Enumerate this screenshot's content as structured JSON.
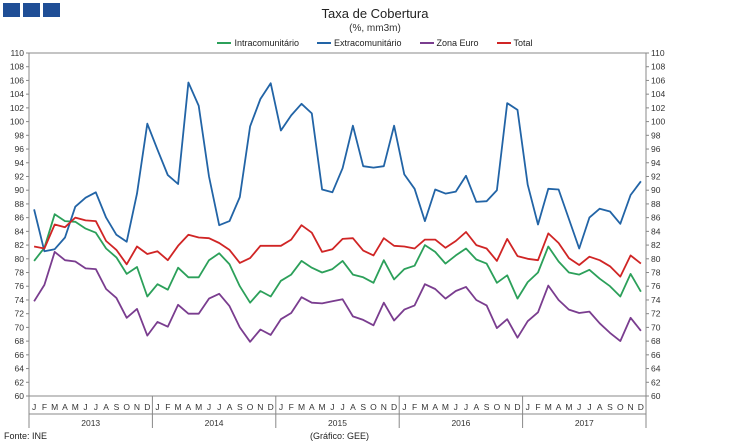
{
  "header": {
    "title": "Taxa de Cobertura",
    "subtitle": "(%, mm3m)"
  },
  "footer": {
    "source": "Fonte: INE",
    "credit": "(Gráfico: GEE)"
  },
  "chart_data": {
    "type": "line",
    "title": "Taxa de Cobertura",
    "subtitle": "(%, mm3m)",
    "ylim": [
      60,
      110
    ],
    "ytick_step": 2,
    "legend_position": "top",
    "month_labels": [
      "J",
      "F",
      "M",
      "A",
      "M",
      "J",
      "J",
      "A",
      "S",
      "O",
      "N",
      "D"
    ],
    "years": [
      "2013",
      "2014",
      "2015",
      "2016",
      "2017"
    ],
    "series": [
      {
        "name": "Intracomunitário",
        "color": "#2ca05a",
        "values": [
          79.7,
          81.6,
          86.5,
          85.5,
          85.4,
          84.4,
          83.8,
          81.5,
          80.2,
          77.8,
          78.8,
          74.5,
          76.3,
          75.5,
          78.7,
          77.3,
          77.3,
          79.8,
          80.8,
          79.2,
          76.0,
          73.6,
          75.3,
          74.5,
          76.8,
          77.7,
          79.7,
          78.7,
          78.0,
          78.5,
          79.7,
          77.7,
          77.3,
          76.5,
          79.8,
          77.0,
          78.5,
          79.0,
          82.0,
          81.0,
          79.3,
          80.5,
          81.5,
          79.9,
          79.3,
          76.5,
          77.6,
          74.2,
          76.6,
          78.0,
          81.8,
          79.6,
          78.0,
          77.7,
          78.4,
          77.1,
          76.0,
          74.5,
          77.8,
          75.2
        ]
      },
      {
        "name": "Extracomunitário",
        "color": "#2264a6",
        "values": [
          87.2,
          81.1,
          81.4,
          83.1,
          87.6,
          88.9,
          89.7,
          86.0,
          83.5,
          82.5,
          89.5,
          99.7,
          95.9,
          92.2,
          90.9,
          105.7,
          102.3,
          92.0,
          84.9,
          85.5,
          89.0,
          99.3,
          103.3,
          105.6,
          98.7,
          100.9,
          102.6,
          101.2,
          90.1,
          89.7,
          93.2,
          99.4,
          93.5,
          93.3,
          93.5,
          99.4,
          92.3,
          90.2,
          85.5,
          90.1,
          89.5,
          89.8,
          92.1,
          88.3,
          88.4,
          90.0,
          102.7,
          101.7,
          90.8,
          85.0,
          90.2,
          90.1,
          85.8,
          81.5,
          86.0,
          87.3,
          86.9,
          85.1,
          89.3,
          91.3
        ]
      },
      {
        "name": "Zona Euro",
        "color": "#7a3d8f",
        "values": [
          73.8,
          76.2,
          81.0,
          79.8,
          79.6,
          78.6,
          78.5,
          75.6,
          74.3,
          71.4,
          72.7,
          68.8,
          70.8,
          70.1,
          73.3,
          72.0,
          72.0,
          74.2,
          74.9,
          73.1,
          70.0,
          67.9,
          69.7,
          68.9,
          71.2,
          72.1,
          74.4,
          73.6,
          73.5,
          73.8,
          74.1,
          71.6,
          71.1,
          70.3,
          73.6,
          71.0,
          72.6,
          73.2,
          76.3,
          75.6,
          74.2,
          75.3,
          75.9,
          74.0,
          73.2,
          69.9,
          71.2,
          68.5,
          70.9,
          72.2,
          76.1,
          74.0,
          72.6,
          72.1,
          72.3,
          70.6,
          69.2,
          68.0,
          71.4,
          69.5
        ]
      },
      {
        "name": "Total",
        "color": "#d02525",
        "values": [
          81.8,
          81.5,
          85.0,
          84.6,
          86.0,
          85.6,
          85.5,
          82.6,
          81.3,
          79.2,
          81.8,
          80.7,
          81.1,
          79.8,
          81.9,
          83.5,
          83.1,
          83.0,
          82.3,
          81.3,
          79.4,
          80.1,
          81.9,
          81.9,
          81.9,
          82.8,
          84.9,
          83.8,
          81.0,
          81.4,
          82.9,
          83.0,
          81.2,
          80.5,
          83.0,
          81.9,
          81.8,
          81.5,
          82.8,
          82.8,
          81.6,
          82.6,
          83.9,
          82.0,
          81.5,
          79.7,
          82.9,
          80.4,
          80.0,
          79.8,
          83.7,
          82.3,
          80.1,
          79.1,
          80.3,
          79.8,
          78.9,
          77.4,
          80.5,
          79.3
        ]
      }
    ]
  }
}
